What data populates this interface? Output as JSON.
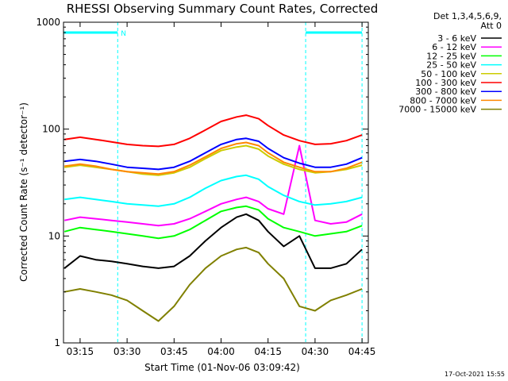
{
  "chart_data": {
    "type": "line",
    "title": "RHESSI Observing Summary Count Rates, Corrected",
    "xlabel": "Start Time (01-Nov-06 03:09:42)",
    "ylabel": "Corrected Count Rate (s⁻¹ detector⁻¹)",
    "y_scale": "log",
    "ylim": [
      1,
      1000
    ],
    "xlim": [
      "03:09:42",
      "04:47:00"
    ],
    "x_ticks": [
      "03:15",
      "03:30",
      "03:45",
      "04:00",
      "04:15",
      "04:30",
      "04:45"
    ],
    "y_ticks": [
      "1",
      "10",
      "100",
      "1000"
    ],
    "legend_header": [
      "Det 1,3,4,5,6,9,",
      "Att 0"
    ],
    "legend_position": "right",
    "timestamp": "17-Oct-2021 15:55",
    "flag_label": "N",
    "flag_intervals": [
      [
        "03:09:42",
        "03:27:00"
      ],
      [
        "04:27:00",
        "04:45:00"
      ]
    ],
    "flag_level": 800,
    "x": [
      "03:10",
      "03:15",
      "03:20",
      "03:25",
      "03:30",
      "03:35",
      "03:40",
      "03:45",
      "03:50",
      "03:55",
      "04:00",
      "04:05",
      "04:08",
      "04:12",
      "04:15",
      "04:20",
      "04:25",
      "04:30",
      "04:35",
      "04:40",
      "04:45"
    ],
    "series": [
      {
        "name": "3 - 6 keV",
        "color": "#000000",
        "values": [
          5.0,
          6.5,
          6.0,
          5.8,
          5.5,
          5.2,
          5.0,
          5.2,
          6.5,
          9.0,
          12.0,
          15.0,
          16.0,
          14.0,
          11.0,
          8.0,
          10.0,
          5.0,
          5.0,
          5.5,
          7.5
        ]
      },
      {
        "name": "6 - 12 keV",
        "color": "#ff00ff",
        "values": [
          14.0,
          15.0,
          14.5,
          14.0,
          13.5,
          13.0,
          12.5,
          13.0,
          14.5,
          17.0,
          20.0,
          22.0,
          23.0,
          21.0,
          18.0,
          16.0,
          70.0,
          14.0,
          13.0,
          13.5,
          16.0
        ]
      },
      {
        "name": "12 - 25 keV",
        "color": "#00ff00",
        "values": [
          11.0,
          12.0,
          11.5,
          11.0,
          10.5,
          10.0,
          9.5,
          10.0,
          11.5,
          14.0,
          17.0,
          18.5,
          19.0,
          17.5,
          14.5,
          12.0,
          11.0,
          10.0,
          10.5,
          11.0,
          12.5
        ]
      },
      {
        "name": "25 - 50 keV",
        "color": "#00ffff",
        "values": [
          22.0,
          23.0,
          22.0,
          21.0,
          20.0,
          19.5,
          19.0,
          20.0,
          23.0,
          28.0,
          33.0,
          36.0,
          37.0,
          34.0,
          29.0,
          24.0,
          21.0,
          19.5,
          20.0,
          21.0,
          23.0
        ]
      },
      {
        "name": "50 - 100 keV",
        "color": "#cccc00",
        "values": [
          44.0,
          46.0,
          44.0,
          42.0,
          40.0,
          38.0,
          37.0,
          39.0,
          44.0,
          53.0,
          63.0,
          68.0,
          70.0,
          65.0,
          56.0,
          47.0,
          42.0,
          39.0,
          40.0,
          42.0,
          46.0
        ]
      },
      {
        "name": "100 - 300 keV",
        "color": "#ff0000",
        "values": [
          80.0,
          84.0,
          80.0,
          76.0,
          72.0,
          70.0,
          69.0,
          72.0,
          82.0,
          98.0,
          118.0,
          130.0,
          135.0,
          125.0,
          108.0,
          88.0,
          78.0,
          72.0,
          73.0,
          78.0,
          88.0
        ]
      },
      {
        "name": "300 - 800 keV",
        "color": "#0000ff",
        "values": [
          50.0,
          52.0,
          50.0,
          47.0,
          44.0,
          43.0,
          42.0,
          44.0,
          50.0,
          60.0,
          72.0,
          80.0,
          82.0,
          77.0,
          66.0,
          54.0,
          48.0,
          44.0,
          44.0,
          47.0,
          54.0
        ]
      },
      {
        "name": "800 - 7000 keV",
        "color": "#ff8800",
        "values": [
          45.0,
          47.0,
          45.0,
          42.0,
          40.0,
          39.0,
          38.0,
          40.0,
          46.0,
          55.0,
          66.0,
          73.0,
          75.0,
          70.0,
          60.0,
          49.0,
          44.0,
          40.0,
          40.0,
          43.0,
          49.0
        ]
      },
      {
        "name": "7000 - 15000 keV",
        "color": "#808000",
        "values": [
          3.0,
          3.2,
          3.0,
          2.8,
          2.5,
          2.0,
          1.6,
          2.2,
          3.5,
          5.0,
          6.5,
          7.5,
          7.8,
          7.0,
          5.5,
          4.0,
          2.2,
          2.0,
          2.5,
          2.8,
          3.2
        ]
      }
    ]
  }
}
